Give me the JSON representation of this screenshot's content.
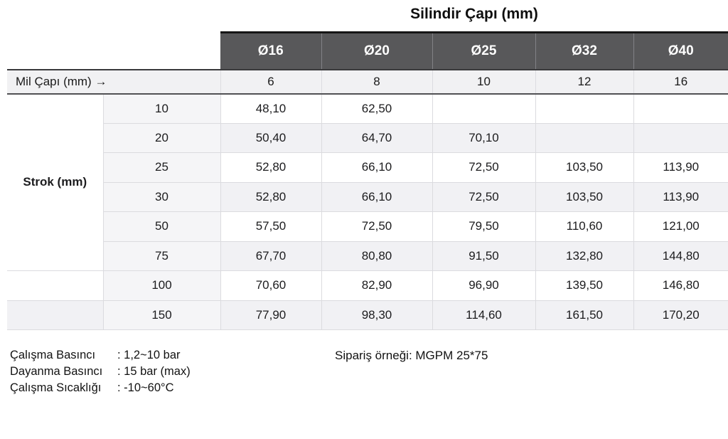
{
  "title": "Silindir Çapı (mm)",
  "table": {
    "diameters": [
      "Ø16",
      "Ø20",
      "Ø25",
      "Ø32",
      "Ø40"
    ],
    "mil_label": "Mil Çapı (mm) →",
    "mil_values": [
      "6",
      "8",
      "10",
      "12",
      "16"
    ],
    "strok_label": "Strok (mm)",
    "rows": [
      {
        "strok": "10",
        "values": [
          "48,10",
          "62,50",
          "",
          "",
          ""
        ]
      },
      {
        "strok": "20",
        "values": [
          "50,40",
          "64,70",
          "70,10",
          "",
          ""
        ]
      },
      {
        "strok": "25",
        "values": [
          "52,80",
          "66,10",
          "72,50",
          "103,50",
          "113,90"
        ]
      },
      {
        "strok": "30",
        "values": [
          "52,80",
          "66,10",
          "72,50",
          "103,50",
          "113,90"
        ]
      },
      {
        "strok": "50",
        "values": [
          "57,50",
          "72,50",
          "79,50",
          "110,60",
          "121,00"
        ]
      },
      {
        "strok": "75",
        "values": [
          "67,70",
          "80,80",
          "91,50",
          "132,80",
          "144,80"
        ]
      },
      {
        "strok": "100",
        "values": [
          "70,60",
          "82,90",
          "96,90",
          "139,50",
          "146,80"
        ]
      },
      {
        "strok": "150",
        "values": [
          "77,90",
          "98,30",
          "114,60",
          "161,50",
          "170,20"
        ]
      }
    ]
  },
  "footer": {
    "specs": [
      {
        "label": "Çalışma Basıncı",
        "value": ": 1,2~10 bar"
      },
      {
        "label": "Dayanma Basıncı",
        "value": ": 15 bar (max)"
      },
      {
        "label": "Çalışma Sıcaklığı",
        "value": ": -10~60°C"
      }
    ],
    "order_example": "Sipariş örneği: MGPM 25*75"
  },
  "colors": {
    "header_bg": "#58585a",
    "header_text": "#ffffff",
    "row_alt_bg": "#f1f1f4",
    "strok_col_bg": "#f5f5f7",
    "grid_line": "#dbdbdf",
    "dark_border": "#3a3a3c",
    "text": "#1a1a1a",
    "page_bg": "#ffffff"
  }
}
